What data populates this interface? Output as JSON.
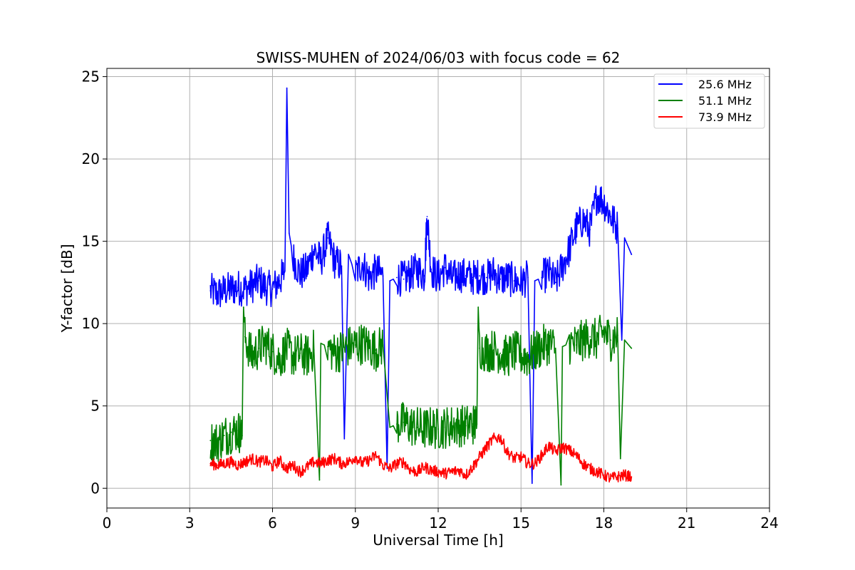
{
  "chart_data": {
    "type": "line",
    "title": "SWISS-MUHEN of 2024/06/03 with focus code = 62",
    "xlabel": "Universal Time [h]",
    "ylabel": "Y-factor [dB]",
    "xlim": [
      0,
      24
    ],
    "ylim": [
      -1.2,
      25.5
    ],
    "xticks": [
      0,
      3,
      6,
      9,
      12,
      15,
      18,
      21,
      24
    ],
    "yticks": [
      0,
      5,
      10,
      15,
      20,
      25
    ],
    "grid": true,
    "legend_position": "top-right",
    "series": [
      {
        "name": "25.6 MHz",
        "color": "#0000ff",
        "x": [
          3.75,
          4.0,
          4.25,
          4.5,
          4.75,
          5.0,
          5.25,
          5.5,
          5.75,
          6.0,
          6.25,
          6.45,
          6.52,
          6.6,
          6.75,
          7.0,
          7.25,
          7.5,
          7.75,
          8.0,
          8.25,
          8.5,
          8.6,
          8.75,
          9.0,
          9.25,
          9.5,
          9.75,
          10.0,
          10.15,
          10.25,
          10.5,
          10.75,
          11.0,
          11.25,
          11.5,
          11.6,
          11.75,
          12.0,
          12.25,
          12.5,
          12.75,
          13.0,
          13.25,
          13.5,
          13.75,
          14.0,
          14.25,
          14.5,
          14.75,
          15.0,
          15.25,
          15.4,
          15.5,
          15.75,
          16.0,
          16.25,
          16.5,
          16.75,
          17.0,
          17.25,
          17.5,
          17.75,
          18.0,
          18.25,
          18.5,
          18.65,
          18.75,
          19.0
        ],
        "values": [
          12.0,
          11.8,
          12.0,
          12.1,
          12.2,
          12.1,
          12.3,
          12.6,
          12.2,
          12.1,
          12.6,
          13.2,
          24.3,
          15.5,
          14.0,
          13.0,
          13.3,
          14.5,
          13.8,
          15.2,
          13.8,
          13.5,
          3.0,
          14.2,
          13.0,
          13.7,
          12.8,
          13.2,
          12.9,
          1.2,
          12.6,
          12.8,
          12.7,
          13.0,
          13.3,
          12.9,
          16.5,
          13.3,
          12.8,
          13.4,
          12.7,
          13.0,
          12.9,
          12.8,
          12.9,
          12.8,
          13.1,
          12.7,
          12.8,
          12.6,
          12.5,
          12.8,
          0.3,
          12.6,
          12.8,
          13.1,
          12.5,
          13.5,
          14.5,
          15.8,
          16.3,
          15.7,
          17.8,
          17.4,
          16.5,
          15.8,
          9.0,
          15.2,
          14.2
        ]
      },
      {
        "name": "51.1 MHz",
        "color": "#008000",
        "x": [
          3.75,
          4.0,
          4.25,
          4.5,
          4.75,
          4.9,
          4.95,
          5.0,
          5.25,
          5.5,
          5.75,
          6.0,
          6.25,
          6.5,
          6.75,
          7.0,
          7.25,
          7.5,
          7.7,
          7.75,
          8.0,
          8.25,
          8.5,
          8.75,
          9.0,
          9.25,
          9.5,
          9.75,
          10.0,
          10.25,
          10.5,
          10.75,
          11.0,
          11.25,
          11.5,
          11.75,
          12.0,
          12.25,
          12.5,
          12.75,
          13.0,
          13.25,
          13.4,
          13.45,
          13.5,
          13.75,
          14.0,
          14.25,
          14.5,
          14.75,
          15.0,
          15.25,
          15.5,
          15.75,
          16.0,
          16.25,
          16.45,
          16.5,
          16.75,
          17.0,
          17.25,
          17.5,
          17.75,
          18.0,
          18.25,
          18.5,
          18.6,
          18.75,
          19.0
        ],
        "values": [
          2.9,
          2.8,
          3.2,
          3.4,
          3.5,
          3.2,
          11.0,
          9.2,
          8.0,
          8.5,
          8.8,
          8.3,
          7.8,
          8.5,
          8.0,
          8.2,
          8.0,
          8.4,
          0.5,
          8.8,
          8.6,
          8.2,
          8.4,
          8.6,
          8.7,
          8.8,
          8.6,
          8.4,
          8.7,
          3.7,
          3.9,
          4.0,
          3.8,
          3.7,
          3.6,
          3.7,
          3.6,
          3.7,
          3.8,
          3.8,
          3.8,
          3.9,
          3.9,
          11.0,
          8.5,
          8.3,
          8.4,
          8.2,
          8.0,
          8.3,
          8.1,
          7.9,
          8.3,
          8.6,
          8.8,
          8.5,
          0.2,
          8.6,
          8.8,
          8.7,
          9.0,
          9.2,
          9.0,
          9.5,
          9.0,
          9.3,
          1.8,
          9.0,
          8.5
        ]
      },
      {
        "name": "73.9 MHz",
        "color": "#ff0000",
        "x": [
          3.75,
          4.0,
          4.25,
          4.5,
          4.75,
          5.0,
          5.25,
          5.5,
          5.75,
          6.0,
          6.25,
          6.5,
          6.75,
          7.0,
          7.25,
          7.5,
          7.75,
          8.0,
          8.25,
          8.5,
          8.75,
          9.0,
          9.25,
          9.5,
          9.75,
          10.0,
          10.25,
          10.5,
          10.75,
          11.0,
          11.25,
          11.5,
          11.75,
          12.0,
          12.25,
          12.5,
          12.75,
          13.0,
          13.25,
          13.5,
          13.75,
          14.0,
          14.25,
          14.5,
          14.75,
          15.0,
          15.25,
          15.5,
          15.75,
          16.0,
          16.25,
          16.5,
          16.75,
          17.0,
          17.25,
          17.5,
          17.75,
          18.0,
          18.25,
          18.5,
          18.75,
          19.0
        ],
        "values": [
          1.5,
          1.4,
          1.5,
          1.6,
          1.4,
          1.6,
          1.8,
          1.6,
          1.7,
          1.3,
          1.7,
          1.2,
          1.4,
          1.0,
          1.3,
          1.6,
          1.5,
          1.7,
          1.8,
          1.5,
          1.6,
          1.9,
          1.5,
          1.7,
          2.0,
          1.4,
          1.2,
          1.5,
          1.6,
          1.1,
          1.0,
          1.3,
          1.1,
          1.0,
          0.9,
          1.0,
          1.1,
          0.8,
          1.3,
          1.9,
          2.5,
          3.0,
          3.1,
          2.2,
          1.8,
          1.9,
          1.5,
          1.5,
          2.0,
          2.6,
          2.2,
          2.5,
          2.3,
          2.0,
          1.5,
          1.2,
          1.0,
          0.8,
          0.6,
          0.7,
          0.8,
          0.7
        ]
      }
    ]
  }
}
